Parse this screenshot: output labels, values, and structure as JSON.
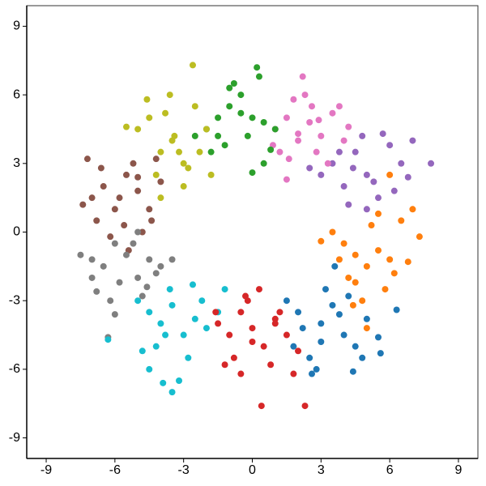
{
  "chart_data": {
    "type": "scatter",
    "xlim": [
      -9.85,
      9.85
    ],
    "ylim": [
      -9.9,
      9.9
    ],
    "xticks": [
      -9,
      -6,
      -3,
      0,
      3,
      6,
      9
    ],
    "yticks": [
      -9,
      -6,
      -3,
      0,
      3,
      6,
      9
    ],
    "series": [
      {
        "color": "#1f77b4",
        "x": [
          1.5,
          2,
          2.5,
          3,
          3.5,
          4,
          4.5,
          5,
          5.5,
          2.8,
          3.2,
          4.2,
          4.8,
          3.8,
          2.2,
          1.8,
          5.6,
          4.4,
          3,
          3.6,
          6.3,
          2.6
        ],
        "y": [
          -3,
          -3.5,
          -5.5,
          -4,
          -3.2,
          -4.5,
          -5,
          -3.8,
          -4.6,
          -6,
          -2.5,
          -2.8,
          -5.5,
          -3.6,
          -4.2,
          -5,
          -5.3,
          -6.1,
          -4.8,
          -1.5,
          -3.4,
          -6.2
        ]
      },
      {
        "color": "#ff7f0e",
        "x": [
          3.5,
          4,
          4.5,
          5,
          5.5,
          6,
          6.5,
          7,
          4.2,
          4.8,
          5.2,
          5.8,
          3.8,
          6.2,
          7.3,
          4.5,
          5.5,
          6.8,
          3,
          4.4,
          5,
          6
        ],
        "y": [
          0,
          -0.5,
          -1,
          -1.5,
          -0.8,
          -1.2,
          0.5,
          1,
          -2,
          -3,
          0.3,
          -2.5,
          -1.2,
          -1.8,
          -0.2,
          -2.2,
          0.8,
          -1.3,
          -0.4,
          -3.2,
          -4.2,
          2.5
        ]
      },
      {
        "color": "#9467bd",
        "x": [
          3,
          3.5,
          4,
          4.5,
          5,
          5.5,
          6,
          6.5,
          7,
          4.2,
          4.8,
          5.3,
          6.2,
          3.8,
          7.8,
          5.7,
          4.4,
          6.8,
          2.5,
          5
        ],
        "y": [
          2.5,
          3,
          2,
          3.5,
          2.5,
          1.5,
          3.8,
          3,
          4,
          1.2,
          4.2,
          2.2,
          1.8,
          3.5,
          3,
          4.3,
          2.8,
          2.4,
          2.8,
          1
        ]
      },
      {
        "color": "#e377c2",
        "x": [
          1,
          1.5,
          2,
          2.5,
          3,
          3.5,
          4,
          1.2,
          1.8,
          2.2,
          2.8,
          3.3,
          2,
          2.6,
          1.5,
          3.8,
          2.3,
          1.6,
          4.2,
          2.9,
          0.9
        ],
        "y": [
          4.5,
          5,
          4,
          4.8,
          4.2,
          5.2,
          4,
          3.5,
          5.8,
          6.8,
          3.5,
          3,
          4.3,
          5.5,
          2.3,
          5.5,
          6,
          3.2,
          4.6,
          4.9,
          3.8
        ]
      },
      {
        "color": "#2ca02c",
        "x": [
          -2,
          -1.5,
          -1,
          -0.5,
          0,
          0.5,
          1,
          -1.2,
          -0.8,
          -0.2,
          0.3,
          -1.8,
          0.8,
          -0.5,
          -2.5,
          0.2,
          -1,
          0,
          -1.5,
          0.5
        ],
        "y": [
          4.5,
          5,
          5.5,
          6,
          5,
          4.8,
          4.5,
          3.8,
          6.5,
          4.2,
          6.8,
          3.5,
          3.6,
          5.2,
          4.2,
          7.2,
          6.3,
          2.6,
          4.2,
          3
        ]
      },
      {
        "color": "#bcbd22",
        "x": [
          -5,
          -4.5,
          -4,
          -3.5,
          -3,
          -2.5,
          -2,
          -4.2,
          -3.8,
          -3.2,
          -2.8,
          -4.6,
          -3.6,
          -2.3,
          -4,
          -3,
          -1.8,
          -2.6,
          -5.5,
          -3.4
        ],
        "y": [
          4.5,
          5,
          3.5,
          4,
          3,
          5.5,
          4.5,
          2.5,
          5.2,
          3.5,
          2.8,
          5.8,
          6,
          3.5,
          1.5,
          2,
          2.5,
          7.3,
          4.6,
          4.2
        ]
      },
      {
        "color": "#8c564b",
        "x": [
          -7,
          -6.5,
          -6,
          -5.5,
          -5,
          -4.5,
          -4,
          -6.8,
          -5.8,
          -5.2,
          -4.8,
          -7.4,
          -6.2,
          -5.6,
          -4.2,
          -6.6,
          -5,
          -4.4,
          -7.2,
          -5.4
        ],
        "y": [
          1.5,
          2,
          1,
          2.5,
          1.8,
          1,
          2.2,
          0.5,
          1.5,
          3,
          0,
          1.2,
          -0.2,
          0.3,
          3.2,
          2.8,
          2.4,
          0.5,
          3.2,
          -0.8
        ]
      },
      {
        "color": "#7f7f7f",
        "x": [
          -7.5,
          -7,
          -6.5,
          -6,
          -5.5,
          -5,
          -4.5,
          -4,
          -6.8,
          -6.2,
          -5.2,
          -4.8,
          -5.8,
          -4.2,
          -7,
          -6,
          -5,
          -3.5,
          -6.3,
          -4.6
        ],
        "y": [
          -1,
          -2,
          -1.5,
          -0.5,
          -1,
          -2,
          -1.2,
          -1.5,
          -2.6,
          -3,
          -0.5,
          -2.8,
          -2.2,
          -1.8,
          -1.2,
          -3.6,
          0,
          -1.2,
          -4.6,
          -2.4
        ]
      },
      {
        "color": "#17becf",
        "x": [
          -5,
          -4.5,
          -4,
          -3.5,
          -3,
          -2.5,
          -2,
          -1.5,
          -4.2,
          -3.8,
          -3.2,
          -2.8,
          -4.5,
          -3.5,
          -6.3,
          -3.6,
          -2.2,
          -4.8,
          -2.6,
          -1.2,
          -3.9
        ],
        "y": [
          -3,
          -3.5,
          -4,
          -3.2,
          -4.5,
          -3.8,
          -4.2,
          -3.5,
          -5,
          -4.5,
          -6.5,
          -5.5,
          -6,
          -7,
          -4.7,
          -2.5,
          -3,
          -5.2,
          -2.3,
          -2.5,
          -6.6
        ]
      },
      {
        "color": "#d62728",
        "x": [
          -1.5,
          -1,
          -0.5,
          0,
          0.5,
          1,
          1.5,
          2,
          -0.8,
          -0.2,
          0.3,
          0.8,
          1.2,
          -1.2,
          0.4,
          -0.5,
          1.8,
          2.3,
          -1.6,
          0,
          -0.3,
          1
        ],
        "y": [
          -4,
          -4.5,
          -3.5,
          -4.2,
          -5,
          -4,
          -4.5,
          -5.2,
          -5.5,
          -3,
          -2.5,
          -5.8,
          -3.5,
          -5.8,
          -7.6,
          -6.2,
          -6.2,
          -7.6,
          -3.5,
          -4.8,
          -2.8,
          -3.8
        ]
      }
    ]
  }
}
